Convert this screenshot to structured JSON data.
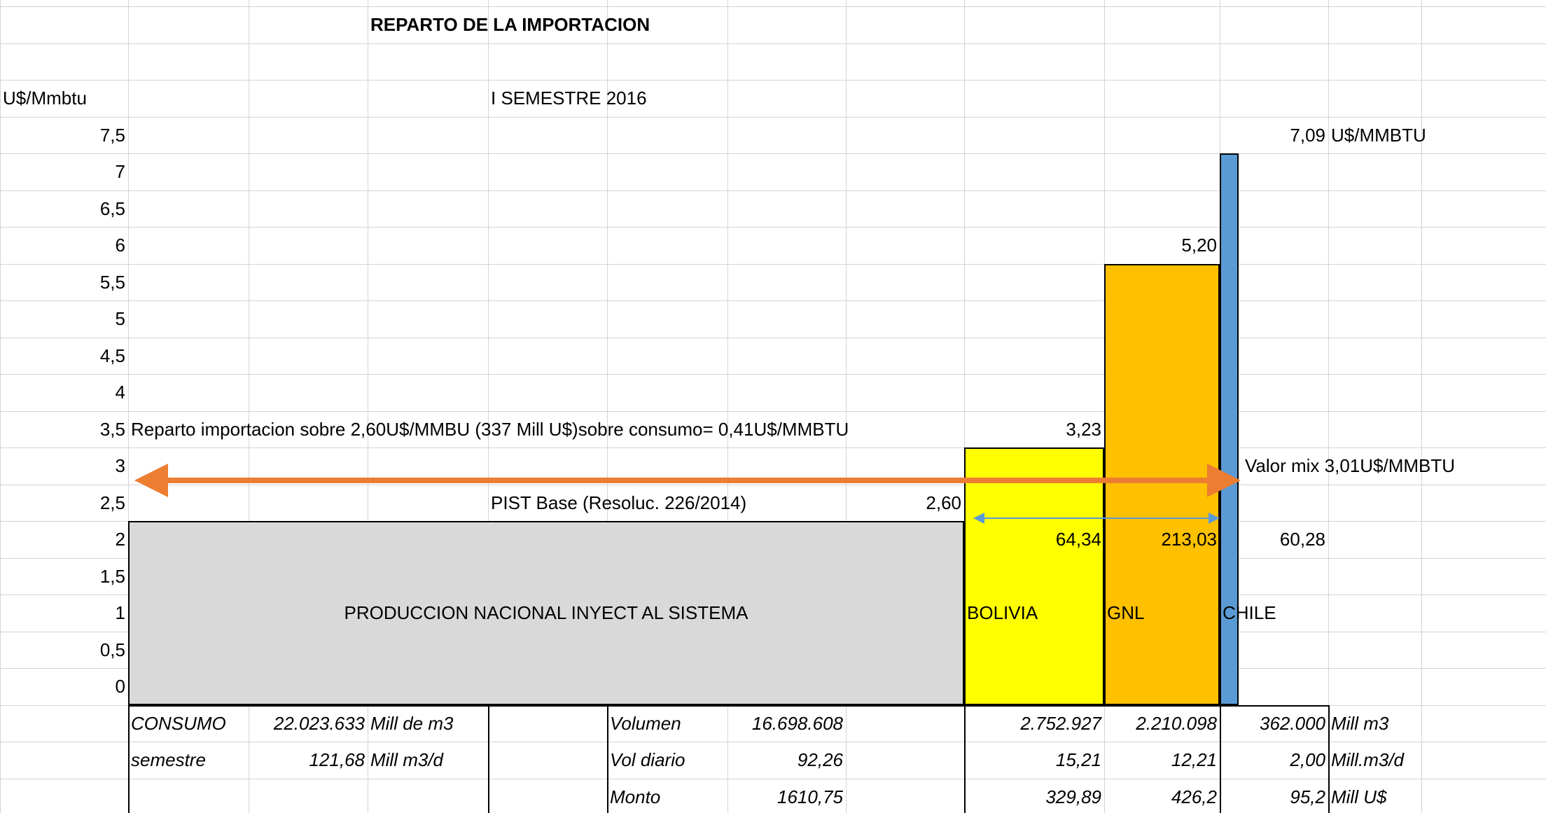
{
  "title": "REPARTO DE LA IMPORTACION",
  "subtitle": "I SEMESTRE 2016",
  "axis": {
    "label": "U$/Mmbtu",
    "ticks": [
      {
        "value": 7.5,
        "label": "7,5"
      },
      7,
      {
        "value": 6.5,
        "label": "6,5"
      },
      6,
      {
        "value": 5.5,
        "label": "5,5"
      },
      5,
      {
        "value": 4.5,
        "label": "4,5"
      },
      4,
      {
        "value": 3.5,
        "label": "3,5"
      },
      3,
      {
        "value": 2.5,
        "label": "2,5"
      },
      2,
      {
        "value": 1.5,
        "label": "1,5"
      },
      1,
      {
        "value": 0.5,
        "label": "0,5"
      },
      0
    ]
  },
  "notes": {
    "reparto": "Reparto importacion sobre 2,60U$/MMBU (337 Mill U$)sobre consumo= 0,41U$/MMBTU",
    "pist": "PIST Base (Resoluc. 226/2014)",
    "mix": "Valor mix  3,01U$/MMBTU"
  },
  "bars": {
    "nacional": {
      "label": "PRODUCCION NACIONAL INYECT AL SISTEMA",
      "value": "2,60"
    },
    "bolivia": {
      "label": "BOLIVIA",
      "value": "3,23",
      "amount": "64,34"
    },
    "gnl": {
      "label": "GNL",
      "value": "5,20",
      "amount": "213,03"
    },
    "chile": {
      "label": "CHILE",
      "value": "7,09",
      "unit": "U$/MMBTU",
      "amount": "60,28"
    }
  },
  "table": {
    "rows": [
      {
        "label": "CONSUMO",
        "total": "22.023.633",
        "total_unit": "Mill de m3",
        "metric": "Volumen",
        "nacional": "16.698.608",
        "bolivia": "2.752.927",
        "gnl": "2.210.098",
        "chile": "362.000",
        "unit": "Mill m3"
      },
      {
        "label": "semestre",
        "total": "121,68",
        "total_unit": "Mill m3/d",
        "metric": "Vol diario",
        "nacional": "92,26",
        "bolivia": "15,21",
        "gnl": "12,21",
        "chile": "2,00",
        "unit": "Mill.m3/d"
      },
      {
        "metric": "Monto",
        "nacional": "1610,75",
        "bolivia": "329,89",
        "gnl": "426,2",
        "chile": "95,2",
        "unit": "Mill U$"
      }
    ]
  }
}
